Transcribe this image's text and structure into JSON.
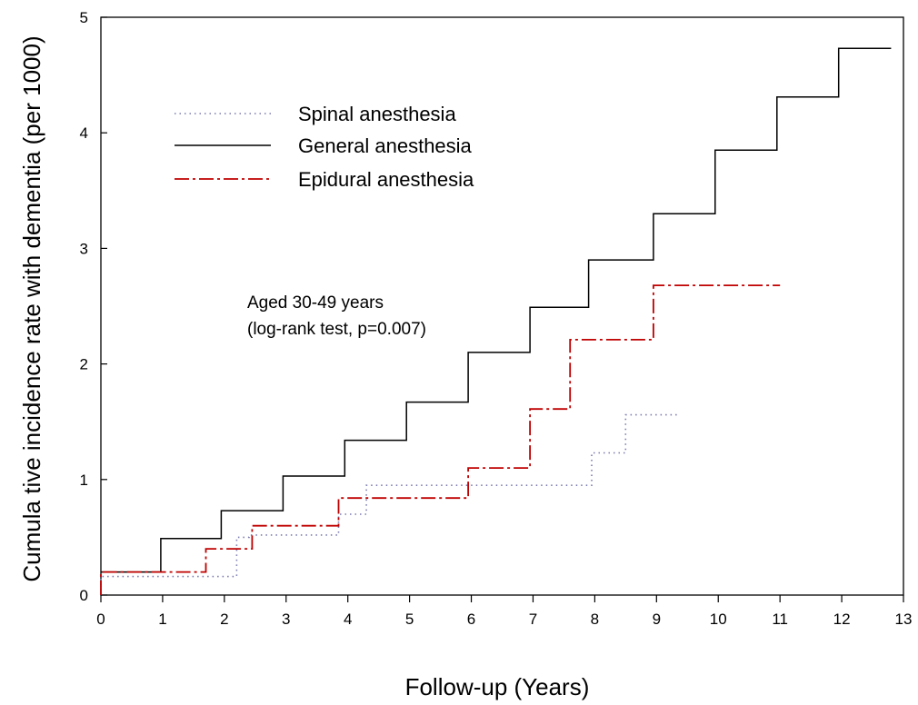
{
  "chart_data": {
    "type": "line",
    "step": true,
    "xlabel": "Follow-up (Years)",
    "ylabel": "Cumula tive incidence rate with dementia (per 1000)",
    "xlim": [
      0,
      13
    ],
    "ylim": [
      0,
      5
    ],
    "xticks": [
      "0",
      "1",
      "2",
      "3",
      "4",
      "5",
      "6",
      "7",
      "8",
      "9",
      "10",
      "11",
      "12",
      "13"
    ],
    "yticks": [
      "0",
      "1",
      "2",
      "3",
      "4",
      "5"
    ],
    "grid": false,
    "legend_position": "top-left",
    "annotations": [
      "Aged 30-49 years",
      "(log-rank test, p=0.007)"
    ],
    "series": [
      {
        "name": "Spinal anesthesia",
        "color": "#7a7ab0",
        "style": "dotted",
        "points": [
          [
            0,
            0
          ],
          [
            0,
            0.16
          ],
          [
            2.2,
            0.16
          ],
          [
            2.2,
            0.5
          ],
          [
            2.4,
            0.5
          ],
          [
            2.4,
            0.52
          ],
          [
            3.85,
            0.52
          ],
          [
            3.85,
            0.7
          ],
          [
            4.3,
            0.7
          ],
          [
            4.3,
            0.95
          ],
          [
            7.95,
            0.95
          ],
          [
            7.95,
            1.23
          ],
          [
            8.5,
            1.23
          ],
          [
            8.5,
            1.56
          ],
          [
            9.35,
            1.56
          ]
        ]
      },
      {
        "name": "General anesthesia",
        "color": "#000000",
        "style": "solid",
        "points": [
          [
            0,
            0.2
          ],
          [
            0.97,
            0.2
          ],
          [
            0.97,
            0.49
          ],
          [
            1.95,
            0.49
          ],
          [
            1.95,
            0.73
          ],
          [
            2.95,
            0.73
          ],
          [
            2.95,
            1.03
          ],
          [
            3.95,
            1.03
          ],
          [
            3.95,
            1.34
          ],
          [
            4.95,
            1.34
          ],
          [
            4.95,
            1.67
          ],
          [
            5.95,
            1.67
          ],
          [
            5.95,
            2.1
          ],
          [
            6.95,
            2.1
          ],
          [
            6.95,
            2.49
          ],
          [
            7.9,
            2.49
          ],
          [
            7.9,
            2.9
          ],
          [
            8.95,
            2.9
          ],
          [
            8.95,
            3.3
          ],
          [
            9.95,
            3.3
          ],
          [
            9.95,
            3.85
          ],
          [
            10.95,
            3.85
          ],
          [
            10.95,
            4.31
          ],
          [
            11.95,
            4.31
          ],
          [
            11.95,
            4.73
          ],
          [
            12.8,
            4.73
          ]
        ]
      },
      {
        "name": "Epidural anesthesia",
        "color": "#c00000",
        "style": "dashdot",
        "points": [
          [
            0,
            0
          ],
          [
            0,
            0.2
          ],
          [
            1.7,
            0.2
          ],
          [
            1.7,
            0.4
          ],
          [
            2.45,
            0.4
          ],
          [
            2.45,
            0.6
          ],
          [
            3.85,
            0.6
          ],
          [
            3.85,
            0.84
          ],
          [
            5.95,
            0.84
          ],
          [
            5.95,
            1.1
          ],
          [
            6.95,
            1.1
          ],
          [
            6.95,
            1.61
          ],
          [
            7.6,
            1.61
          ],
          [
            7.6,
            2.21
          ],
          [
            8.95,
            2.21
          ],
          [
            8.95,
            2.68
          ],
          [
            11.0,
            2.68
          ]
        ]
      }
    ]
  }
}
